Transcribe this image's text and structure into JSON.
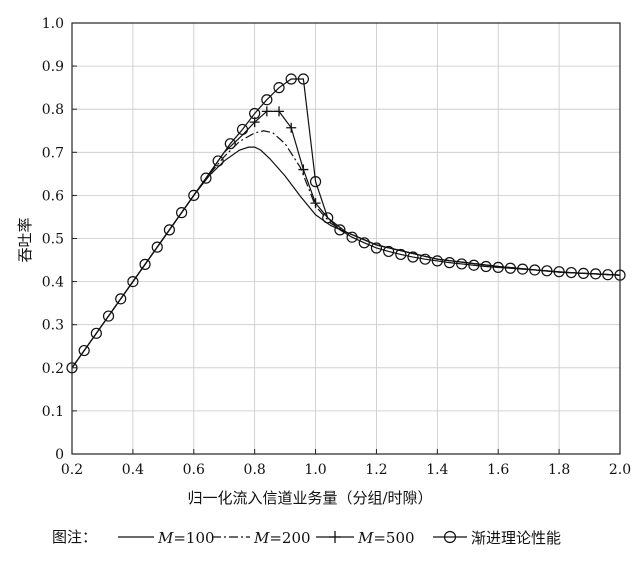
{
  "chart_data": {
    "type": "line",
    "xlabel": "归一化流入信道业务量（分组/时隙）",
    "ylabel": "吞吐率",
    "xlim": [
      0.2,
      2.0
    ],
    "ylim": [
      0.0,
      1.0
    ],
    "xticks": [
      "0.2",
      "0.4",
      "0.6",
      "0.8",
      "1.0",
      "1.2",
      "1.4",
      "1.6",
      "1.8",
      "2.0"
    ],
    "yticks": [
      "0",
      "0.1",
      "0.2",
      "0.3",
      "0.4",
      "0.5",
      "0.6",
      "0.7",
      "0.8",
      "0.9",
      "1.0"
    ],
    "grid": true,
    "legend": {
      "prefix": "图注：",
      "placement": "bottom",
      "items": [
        {
          "label": "M=100",
          "style": "solid"
        },
        {
          "label": "M=200",
          "style": "dashdot"
        },
        {
          "label": "M=500",
          "style": "plus"
        },
        {
          "label": "渐进理论性能",
          "style": "circle"
        }
      ]
    },
    "series": [
      {
        "name": "M=100",
        "style": "solid",
        "x": [
          0.2,
          0.3,
          0.4,
          0.5,
          0.6,
          0.65,
          0.7,
          0.75,
          0.78,
          0.8,
          0.82,
          0.85,
          0.9,
          0.95,
          1.0,
          1.05,
          1.1,
          1.2,
          1.4,
          1.6,
          1.8,
          2.0
        ],
        "y": [
          0.2,
          0.3,
          0.4,
          0.5,
          0.6,
          0.645,
          0.68,
          0.705,
          0.712,
          0.712,
          0.705,
          0.685,
          0.645,
          0.598,
          0.555,
          0.53,
          0.515,
          0.485,
          0.452,
          0.435,
          0.422,
          0.415
        ]
      },
      {
        "name": "M=200",
        "style": "dashdot",
        "x": [
          0.2,
          0.3,
          0.4,
          0.5,
          0.6,
          0.65,
          0.7,
          0.75,
          0.8,
          0.83,
          0.86,
          0.9,
          0.95,
          1.0,
          1.05,
          1.1,
          1.2,
          1.4,
          1.6,
          1.8,
          2.0
        ],
        "y": [
          0.2,
          0.3,
          0.4,
          0.5,
          0.6,
          0.648,
          0.69,
          0.725,
          0.745,
          0.75,
          0.745,
          0.72,
          0.665,
          0.575,
          0.535,
          0.515,
          0.485,
          0.452,
          0.435,
          0.422,
          0.415
        ]
      },
      {
        "name": "M=500",
        "style": "plus",
        "x": [
          0.8,
          0.84,
          0.88,
          0.92,
          0.96,
          1.0
        ],
        "y": [
          0.77,
          0.795,
          0.795,
          0.757,
          0.66,
          0.582
        ],
        "line_x": [
          0.2,
          0.3,
          0.4,
          0.5,
          0.6,
          0.7,
          0.76,
          0.8,
          0.84,
          0.88,
          0.92,
          0.96,
          1.0,
          1.04,
          1.1,
          1.2,
          1.4,
          1.6,
          1.8,
          2.0
        ],
        "line_y": [
          0.2,
          0.3,
          0.4,
          0.5,
          0.6,
          0.7,
          0.74,
          0.77,
          0.795,
          0.795,
          0.757,
          0.66,
          0.582,
          0.548,
          0.515,
          0.485,
          0.452,
          0.435,
          0.422,
          0.415
        ]
      },
      {
        "name": "渐进理论性能",
        "style": "circle",
        "x": [
          0.2,
          0.24,
          0.28,
          0.32,
          0.36,
          0.4,
          0.44,
          0.48,
          0.52,
          0.56,
          0.6,
          0.64,
          0.68,
          0.72,
          0.76,
          0.8,
          0.84,
          0.88,
          0.92,
          0.96,
          1.0,
          1.04,
          1.08,
          1.12,
          1.16,
          1.2,
          1.24,
          1.28,
          1.32,
          1.36,
          1.4,
          1.44,
          1.48,
          1.52,
          1.56,
          1.6,
          1.64,
          1.68,
          1.72,
          1.76,
          1.8,
          1.84,
          1.88,
          1.92,
          1.96,
          2.0
        ],
        "y": [
          0.2,
          0.24,
          0.28,
          0.32,
          0.36,
          0.4,
          0.44,
          0.48,
          0.52,
          0.56,
          0.6,
          0.64,
          0.68,
          0.72,
          0.753,
          0.79,
          0.822,
          0.85,
          0.87,
          0.87,
          0.632,
          0.548,
          0.52,
          0.503,
          0.49,
          0.478,
          0.47,
          0.463,
          0.457,
          0.452,
          0.448,
          0.444,
          0.441,
          0.438,
          0.435,
          0.433,
          0.431,
          0.429,
          0.427,
          0.425,
          0.423,
          0.421,
          0.419,
          0.418,
          0.416,
          0.415
        ]
      }
    ]
  }
}
